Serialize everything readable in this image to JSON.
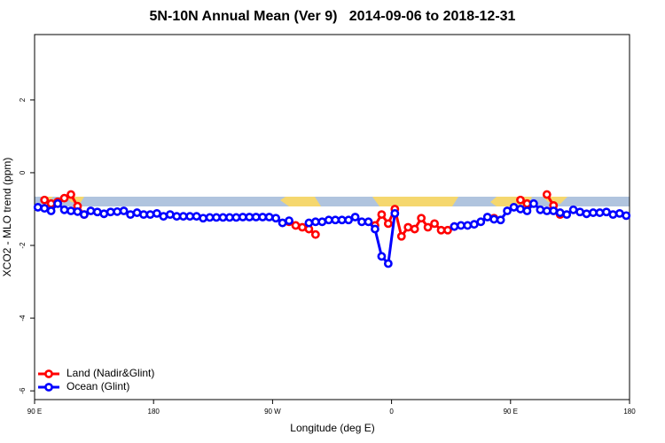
{
  "chart_data": {
    "type": "line",
    "title": "5N-10N Annual Mean (Ver 9)   2014-09-06 to 2018-12-31",
    "xlabel": "Longitude (deg E)",
    "ylabel": "XCO2 - MLO trend (ppm)",
    "x": [
      92.5,
      97.5,
      102.5,
      107.5,
      112.5,
      117.5,
      122.5,
      127.5,
      132.5,
      137.5,
      142.5,
      147.5,
      152.5,
      157.5,
      162.5,
      167.5,
      172.5,
      177.5,
      182.5,
      187.5,
      192.5,
      197.5,
      202.5,
      207.5,
      212.5,
      217.5,
      222.5,
      227.5,
      232.5,
      237.5,
      242.5,
      247.5,
      252.5,
      257.5,
      262.5,
      267.5,
      272.5,
      277.5,
      282.5,
      287.5,
      292.5,
      297.5,
      302.5,
      307.5,
      312.5,
      317.5,
      322.5,
      327.5,
      332.5,
      337.5,
      342.5,
      347.5,
      352.5,
      357.5,
      362.5,
      367.5,
      372.5,
      377.5,
      382.5,
      387.5,
      392.5,
      397.5,
      402.5,
      407.5,
      412.5,
      417.5,
      422.5,
      427.5,
      432.5,
      437.5,
      442.5,
      447.5,
      452.5,
      457.5,
      462.5,
      467.5,
      472.5,
      477.5,
      482.5,
      487.5,
      492.5,
      497.5,
      502.5,
      507.5,
      512.5,
      517.5,
      522.5,
      527.5,
      532.5,
      537.5
    ],
    "series": [
      {
        "name": "Land (Nadir&Glint)",
        "color": "#ff0000",
        "values": [
          null,
          -0.75,
          -0.85,
          -0.8,
          -0.7,
          -0.6,
          -0.92,
          -1.15,
          null,
          null,
          null,
          null,
          null,
          null,
          null,
          null,
          null,
          null,
          null,
          null,
          null,
          null,
          null,
          null,
          null,
          null,
          null,
          null,
          null,
          null,
          null,
          null,
          null,
          null,
          null,
          null,
          null,
          null,
          -1.35,
          -1.45,
          -1.5,
          -1.55,
          -1.7,
          null,
          null,
          null,
          null,
          null,
          null,
          null,
          null,
          -1.45,
          -1.15,
          -1.4,
          -1.0,
          -1.75,
          -1.5,
          -1.55,
          -1.25,
          -1.5,
          -1.4,
          -1.58,
          -1.58,
          -1.48,
          null,
          null,
          null,
          null,
          null,
          -1.25,
          null,
          null,
          null,
          -0.75,
          -0.85,
          null,
          null,
          -0.6,
          -0.9,
          -1.15,
          null,
          null,
          null,
          null,
          null,
          null,
          null,
          null,
          null,
          null
        ]
      },
      {
        "name": "Ocean (Glint)",
        "color": "#0000ff",
        "values": [
          -0.95,
          -0.98,
          -1.05,
          -0.85,
          -1.02,
          -1.05,
          -1.07,
          -1.15,
          -1.05,
          -1.08,
          -1.13,
          -1.08,
          -1.07,
          -1.05,
          -1.15,
          -1.1,
          -1.15,
          -1.15,
          -1.12,
          -1.2,
          -1.15,
          -1.2,
          -1.2,
          -1.2,
          -1.2,
          -1.25,
          -1.23,
          -1.23,
          -1.23,
          -1.23,
          -1.23,
          -1.22,
          -1.22,
          -1.22,
          -1.22,
          -1.22,
          -1.25,
          -1.38,
          -1.32,
          null,
          null,
          -1.38,
          -1.35,
          -1.35,
          -1.3,
          -1.3,
          -1.3,
          -1.3,
          -1.22,
          -1.35,
          -1.35,
          -1.55,
          -2.3,
          -2.5,
          -1.12,
          null,
          null,
          null,
          null,
          null,
          null,
          null,
          null,
          -1.48,
          -1.45,
          -1.45,
          -1.42,
          -1.35,
          -1.22,
          -1.28,
          -1.3,
          -1.05,
          -0.95,
          -1.0,
          -1.05,
          -0.85,
          -1.02,
          -1.05,
          -1.05,
          -1.1,
          -1.15,
          -1.02,
          -1.08,
          -1.13,
          -1.1,
          -1.1,
          -1.08,
          -1.15,
          -1.12,
          -1.18
        ]
      }
    ],
    "xlim": [
      90,
      540
    ],
    "xticks": [
      {
        "value": 90,
        "label": "90 E"
      },
      180,
      {
        "value": 270,
        "label": "90 W"
      },
      {
        "value": 360,
        "label": "0"
      },
      {
        "value": 450,
        "label": "90 E"
      },
      {
        "value": 540,
        "label": "180"
      }
    ],
    "ylim": [
      -6.24,
      3.8
    ],
    "yticks": [
      -6,
      -4,
      -2,
      0,
      2
    ],
    "legend": "bottom-left"
  }
}
